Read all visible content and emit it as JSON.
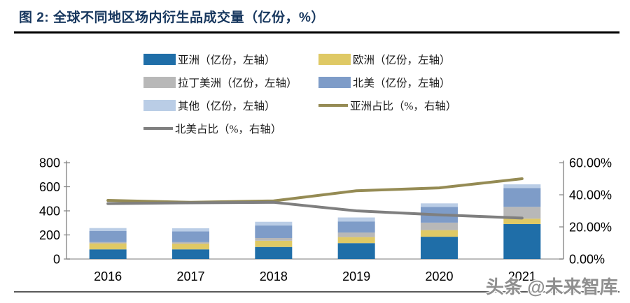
{
  "title": "图 2: 全球不同地区场内衍生品成交量（亿份，%）",
  "watermark": "头条 @未来智库",
  "colors": {
    "title_navy": "#17375E",
    "asia_bar": "#1F6EA8",
    "europe_bar": "#DFC965",
    "latam_bar": "#B8B8B8",
    "na_bar": "#7E9CC8",
    "other_bar": "#BACDE6",
    "asia_share_line": "#958B54",
    "na_share_line": "#7F7F7F",
    "axis_line": "#808080",
    "baseline": "#A6A6A6"
  },
  "chart_data": {
    "type": "bar",
    "stacked": true,
    "title": "全球不同地区场内衍生品成交量（亿份，%）",
    "categories": [
      "2016",
      "2017",
      "2018",
      "2019",
      "2020",
      "2021"
    ],
    "series": [
      {
        "name": "亚洲（亿份，左轴）",
        "kind": "bar",
        "axis": "left",
        "color": "#1F6EA8",
        "values": [
          80,
          80,
          100,
          132,
          185,
          290
        ]
      },
      {
        "name": "欧洲（亿份，左轴）",
        "kind": "bar",
        "axis": "left",
        "color": "#DFC965",
        "values": [
          50,
          48,
          52,
          50,
          55,
          45
        ]
      },
      {
        "name": "拉丁美洲（亿份，左轴）",
        "kind": "bar",
        "axis": "left",
        "color": "#B8B8B8",
        "values": [
          10,
          12,
          22,
          38,
          62,
          98
        ]
      },
      {
        "name": "北美（亿份，左轴）",
        "kind": "bar",
        "axis": "left",
        "color": "#7E9CC8",
        "values": [
          92,
          90,
          105,
          92,
          130,
          157
        ]
      },
      {
        "name": "其他（亿份，左轴）",
        "kind": "bar",
        "axis": "left",
        "color": "#BACDE6",
        "values": [
          25,
          25,
          30,
          33,
          30,
          30
        ]
      },
      {
        "name": "亚洲占比（%，右轴）",
        "kind": "line",
        "axis": "right",
        "color": "#958B54",
        "values": [
          36.5,
          35.3,
          36.2,
          42.5,
          44.3,
          50.0
        ]
      },
      {
        "name": "北美占比（%，右轴）",
        "kind": "line",
        "axis": "right",
        "color": "#7F7F7F",
        "values": [
          34.5,
          35.0,
          35.3,
          30.0,
          27.5,
          25.5
        ]
      }
    ],
    "left_axis": {
      "min": 0,
      "max": 800,
      "tick_step": 200,
      "tick_labels": [
        "0",
        "200",
        "400",
        "600",
        "800"
      ]
    },
    "right_axis": {
      "min": 0,
      "max": 60,
      "tick_step": 20,
      "tick_labels": [
        "0.00%",
        "20.00%",
        "40.00%",
        "60.00%"
      ]
    },
    "grid": false,
    "legend_position": "top"
  }
}
